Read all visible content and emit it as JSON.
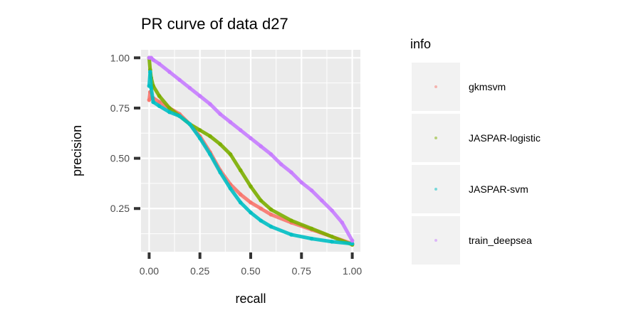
{
  "chart_data": {
    "type": "line",
    "title": "PR curve of data d27",
    "xlabel": "recall",
    "ylabel": "precision",
    "xlim": [
      -0.04,
      1.04
    ],
    "ylim": [
      0.035,
      1.04
    ],
    "x_ticks": [
      {
        "value": 0,
        "label": "0.00"
      },
      {
        "value": 0.25,
        "label": "0.25"
      },
      {
        "value": 0.5,
        "label": "0.50"
      },
      {
        "value": 0.75,
        "label": "0.75"
      },
      {
        "value": 1,
        "label": "1.00"
      }
    ],
    "y_ticks": [
      {
        "value": 0.25,
        "label": "0.25"
      },
      {
        "value": 0.5,
        "label": "0.50"
      },
      {
        "value": 0.75,
        "label": "0.75"
      },
      {
        "value": 1,
        "label": "1.00"
      }
    ],
    "grid": true,
    "legend": {
      "title": "info",
      "position": "right"
    },
    "series": [
      {
        "name": "gkmsvm",
        "color": "#F8766D",
        "x": [
          0.0,
          0.005,
          0.01,
          0.02,
          0.05,
          0.1,
          0.15,
          0.2,
          0.25,
          0.3,
          0.35,
          0.4,
          0.45,
          0.5,
          0.55,
          0.6,
          0.7,
          0.8,
          0.9,
          1.0
        ],
        "y": [
          0.79,
          0.83,
          0.8,
          0.8,
          0.78,
          0.75,
          0.72,
          0.67,
          0.61,
          0.53,
          0.44,
          0.37,
          0.32,
          0.28,
          0.25,
          0.22,
          0.18,
          0.145,
          0.11,
          0.075
        ]
      },
      {
        "name": "JASPAR-logistic",
        "color": "#7CAE00",
        "x": [
          0.0,
          0.005,
          0.01,
          0.02,
          0.05,
          0.1,
          0.15,
          0.2,
          0.25,
          0.3,
          0.35,
          0.4,
          0.45,
          0.5,
          0.55,
          0.6,
          0.7,
          0.8,
          0.9,
          1.0
        ],
        "y": [
          1.0,
          0.94,
          0.9,
          0.86,
          0.81,
          0.75,
          0.71,
          0.67,
          0.64,
          0.61,
          0.57,
          0.52,
          0.44,
          0.36,
          0.29,
          0.245,
          0.19,
          0.15,
          0.11,
          0.07
        ]
      },
      {
        "name": "JASPAR-svm",
        "color": "#00BFC4",
        "x": [
          0.0,
          0.005,
          0.01,
          0.02,
          0.05,
          0.1,
          0.15,
          0.2,
          0.25,
          0.3,
          0.35,
          0.4,
          0.45,
          0.5,
          0.55,
          0.6,
          0.7,
          0.8,
          0.9,
          1.0
        ],
        "y": [
          0.86,
          0.93,
          0.85,
          0.78,
          0.76,
          0.73,
          0.71,
          0.67,
          0.6,
          0.52,
          0.43,
          0.35,
          0.28,
          0.23,
          0.19,
          0.16,
          0.12,
          0.1,
          0.085,
          0.075
        ]
      },
      {
        "name": "train_deepsea",
        "color": "#C77CFF",
        "x": [
          0.0,
          0.01,
          0.02,
          0.05,
          0.1,
          0.15,
          0.2,
          0.25,
          0.3,
          0.35,
          0.4,
          0.45,
          0.5,
          0.55,
          0.6,
          0.65,
          0.7,
          0.75,
          0.8,
          0.85,
          0.9,
          0.95,
          1.0
        ],
        "y": [
          1.0,
          1.0,
          0.99,
          0.97,
          0.93,
          0.89,
          0.85,
          0.81,
          0.77,
          0.72,
          0.68,
          0.64,
          0.6,
          0.56,
          0.52,
          0.47,
          0.43,
          0.38,
          0.34,
          0.29,
          0.24,
          0.18,
          0.09
        ]
      }
    ]
  }
}
